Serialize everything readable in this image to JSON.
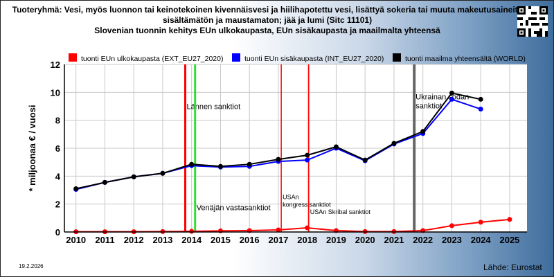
{
  "titles": [
    "Tuoteryhmä: Vesi, myös luonnon tai keinotekoinen kivennäisvesi ja hiilihapotettu vesi, lisättyä sokeria tai muuta makeutusaineita",
    "sisältämätön ja maustamaton; jää ja lumi (Sitc 11101)",
    "Slovenian tuonnin kehitys EUn ulkokaupasta, EUn sisäkaupasta ja maailmalta yhteensä"
  ],
  "footer": {
    "date": "19.2.2026",
    "source": "Lähde: Eurostat"
  },
  "colors": {
    "ext": "#ff0000",
    "int": "#0000ff",
    "world": "#000000",
    "green_line": "#33dd33",
    "gray_line": "#666666"
  },
  "chart_data": {
    "type": "line",
    "ylabel": "* miljoonaa € / vuosi",
    "xlabel": "",
    "ylim": [
      0,
      12
    ],
    "yticks": [
      0,
      2,
      4,
      6,
      8,
      10,
      12
    ],
    "xlim": [
      2009.6,
      2025.6
    ],
    "x": [
      2010,
      2011,
      2012,
      2013,
      2014,
      2015,
      2016,
      2017,
      2018,
      2019,
      2020,
      2021,
      2022,
      2023,
      2024,
      2025
    ],
    "grid": true,
    "legend": "top",
    "series": [
      {
        "key": "ext",
        "name": "tuonti EUn ulkokaupasta (EXT_EU27_2020)",
        "points": [
          [
            2010,
            0.02
          ],
          [
            2011,
            0.02
          ],
          [
            2012,
            0.02
          ],
          [
            2013,
            0.03
          ],
          [
            2014,
            0.05
          ],
          [
            2015,
            0.08
          ],
          [
            2016,
            0.1
          ],
          [
            2017,
            0.15
          ],
          [
            2018,
            0.3
          ],
          [
            2019,
            0.1
          ],
          [
            2020,
            0.03
          ],
          [
            2021,
            0.03
          ],
          [
            2022,
            0.1
          ],
          [
            2023,
            0.45
          ],
          [
            2024,
            0.7
          ],
          [
            2025,
            0.9
          ]
        ]
      },
      {
        "key": "int",
        "name": "tuonti EUn sisäkaupasta (INT_EU27_2020)",
        "points": [
          [
            2010,
            3.05
          ],
          [
            2011,
            3.55
          ],
          [
            2012,
            3.95
          ],
          [
            2013,
            4.2
          ],
          [
            2014,
            4.75
          ],
          [
            2015,
            4.65
          ],
          [
            2016,
            4.7
          ],
          [
            2017,
            5.05
          ],
          [
            2018,
            5.15
          ],
          [
            2019,
            6.0
          ],
          [
            2020,
            5.1
          ],
          [
            2021,
            6.3
          ],
          [
            2022,
            7.05
          ],
          [
            2023,
            9.5
          ],
          [
            2024,
            8.8
          ]
        ]
      },
      {
        "key": "world",
        "name": "tuonti maailma yhteensältä (WORLD)",
        "points": [
          [
            2010,
            3.1
          ],
          [
            2011,
            3.55
          ],
          [
            2012,
            3.95
          ],
          [
            2013,
            4.2
          ],
          [
            2014,
            4.85
          ],
          [
            2015,
            4.7
          ],
          [
            2016,
            4.85
          ],
          [
            2017,
            5.2
          ],
          [
            2018,
            5.5
          ],
          [
            2019,
            6.1
          ],
          [
            2020,
            5.15
          ],
          [
            2021,
            6.35
          ],
          [
            2022,
            7.2
          ],
          [
            2023,
            9.95
          ],
          [
            2024,
            9.5
          ]
        ]
      }
    ],
    "events": [
      {
        "key": "e2014a",
        "x": 2013.78,
        "color": "#ff0000",
        "width": 3,
        "label": "Lännen sanktiot",
        "label_y": 8.8
      },
      {
        "key": "e2014b",
        "x": 2014.12,
        "color": "#33dd33",
        "width": 3,
        "label": "Venäjän vastasanktiot",
        "label_y": 1.55
      },
      {
        "key": "e2017",
        "x": 2017.1,
        "color": "#ff0000",
        "width": 1.5,
        "label": "USAn",
        "label2": "kongressisanktiot",
        "label_y": 2.35
      },
      {
        "key": "e2018",
        "x": 2018.05,
        "color": "#ff0000",
        "width": 1.5,
        "label": "USAn Skribal sanktiot",
        "label_y": 1.3
      },
      {
        "key": "e2022",
        "x": 2021.7,
        "color": "#666666",
        "width": 4,
        "label": "Ukrainan sodan",
        "label2": "sanktiot",
        "label_y": 9.5
      }
    ]
  }
}
